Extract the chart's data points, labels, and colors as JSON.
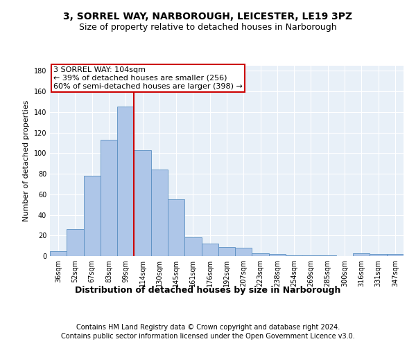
{
  "title": "3, SORREL WAY, NARBOROUGH, LEICESTER, LE19 3PZ",
  "subtitle": "Size of property relative to detached houses in Narborough",
  "xlabel": "Distribution of detached houses by size in Narborough",
  "ylabel": "Number of detached properties",
  "bar_labels": [
    "36sqm",
    "52sqm",
    "67sqm",
    "83sqm",
    "99sqm",
    "114sqm",
    "130sqm",
    "145sqm",
    "161sqm",
    "176sqm",
    "192sqm",
    "207sqm",
    "223sqm",
    "238sqm",
    "254sqm",
    "269sqm",
    "285sqm",
    "300sqm",
    "316sqm",
    "331sqm",
    "347sqm"
  ],
  "bar_values": [
    5,
    26,
    78,
    113,
    145,
    103,
    84,
    55,
    18,
    12,
    9,
    8,
    3,
    2,
    1,
    1,
    1,
    0,
    3,
    2,
    2
  ],
  "bar_color": "#aec6e8",
  "bar_edge_color": "#5a8fc2",
  "vline_color": "#cc0000",
  "ylim": [
    0,
    185
  ],
  "yticks": [
    0,
    20,
    40,
    60,
    80,
    100,
    120,
    140,
    160,
    180
  ],
  "annotation_text": "3 SORREL WAY: 104sqm\n← 39% of detached houses are smaller (256)\n60% of semi-detached houses are larger (398) →",
  "annotation_box_color": "#ffffff",
  "annotation_box_edge_color": "#cc0000",
  "footer_line1": "Contains HM Land Registry data © Crown copyright and database right 2024.",
  "footer_line2": "Contains public sector information licensed under the Open Government Licence v3.0.",
  "background_color": "#e8f0f8",
  "fig_bg_color": "#ffffff",
  "title_fontsize": 10,
  "subtitle_fontsize": 9,
  "xlabel_fontsize": 9,
  "ylabel_fontsize": 8,
  "tick_fontsize": 7,
  "footer_fontsize": 7,
  "annotation_fontsize": 8
}
